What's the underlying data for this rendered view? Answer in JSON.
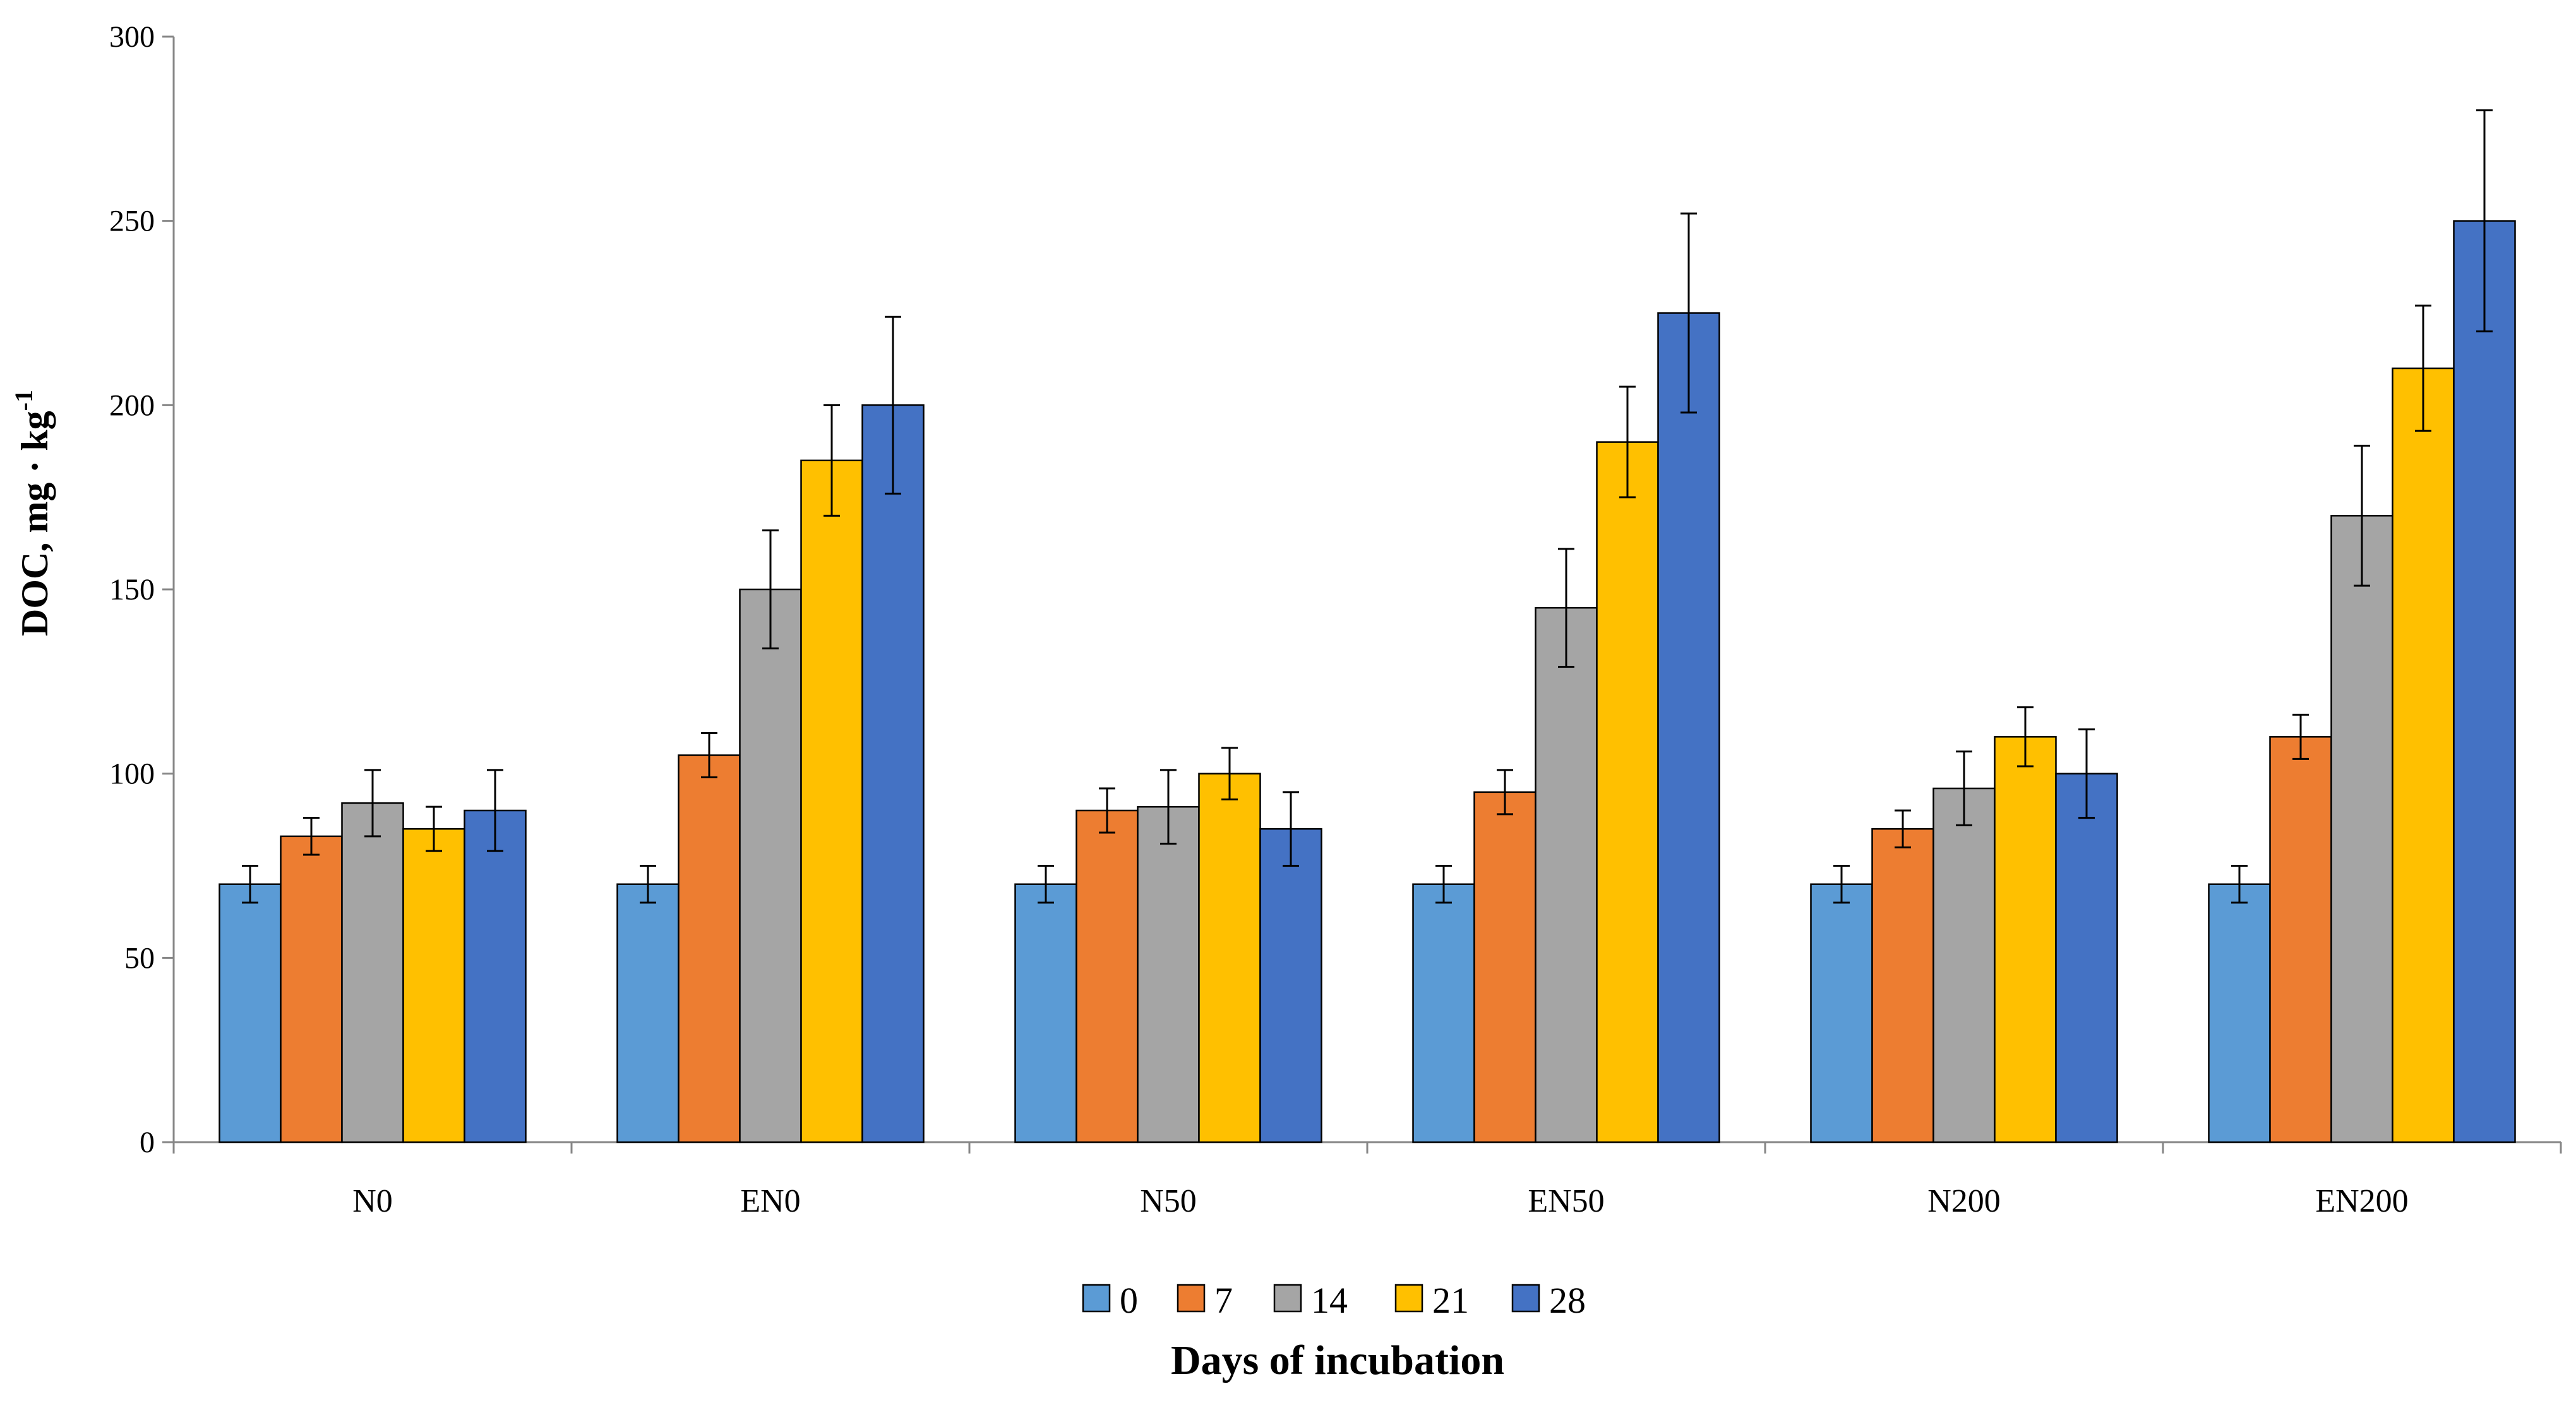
{
  "chart_data": {
    "type": "bar",
    "title": "",
    "xlabel": "Days of incubation",
    "ylabel_main": "DOC, mg · kg",
    "ylabel_sup": "-1",
    "ylim": [
      0,
      300
    ],
    "yticks": [
      0,
      50,
      100,
      150,
      200,
      250,
      300
    ],
    "ytick_labels": [
      "0",
      "50",
      "100",
      "150",
      "200",
      "250",
      "300"
    ],
    "categories": [
      "N0",
      "EN0",
      "N50",
      "EN50",
      "N200",
      "EN200"
    ],
    "legend_position": "bottom",
    "series": [
      {
        "name": "0",
        "color": "#5B9BD5",
        "values": [
          70,
          70,
          70,
          70,
          70,
          70
        ],
        "errors": [
          5,
          5,
          5,
          5,
          5,
          5
        ]
      },
      {
        "name": "7",
        "color": "#ED7D31",
        "values": [
          83,
          105,
          90,
          95,
          85,
          110
        ],
        "errors": [
          5,
          6,
          6,
          6,
          5,
          6
        ]
      },
      {
        "name": "14",
        "color": "#A5A5A5",
        "values": [
          92,
          150,
          91,
          145,
          96,
          170
        ],
        "errors": [
          9,
          16,
          10,
          16,
          10,
          19
        ]
      },
      {
        "name": "21",
        "color": "#FFC000",
        "values": [
          85,
          185,
          100,
          190,
          110,
          210
        ],
        "errors": [
          6,
          15,
          7,
          15,
          8,
          17
        ]
      },
      {
        "name": "28",
        "color": "#4472C4",
        "values": [
          90,
          200,
          85,
          225,
          100,
          250
        ],
        "errors": [
          11,
          24,
          10,
          27,
          12,
          30
        ]
      }
    ]
  }
}
